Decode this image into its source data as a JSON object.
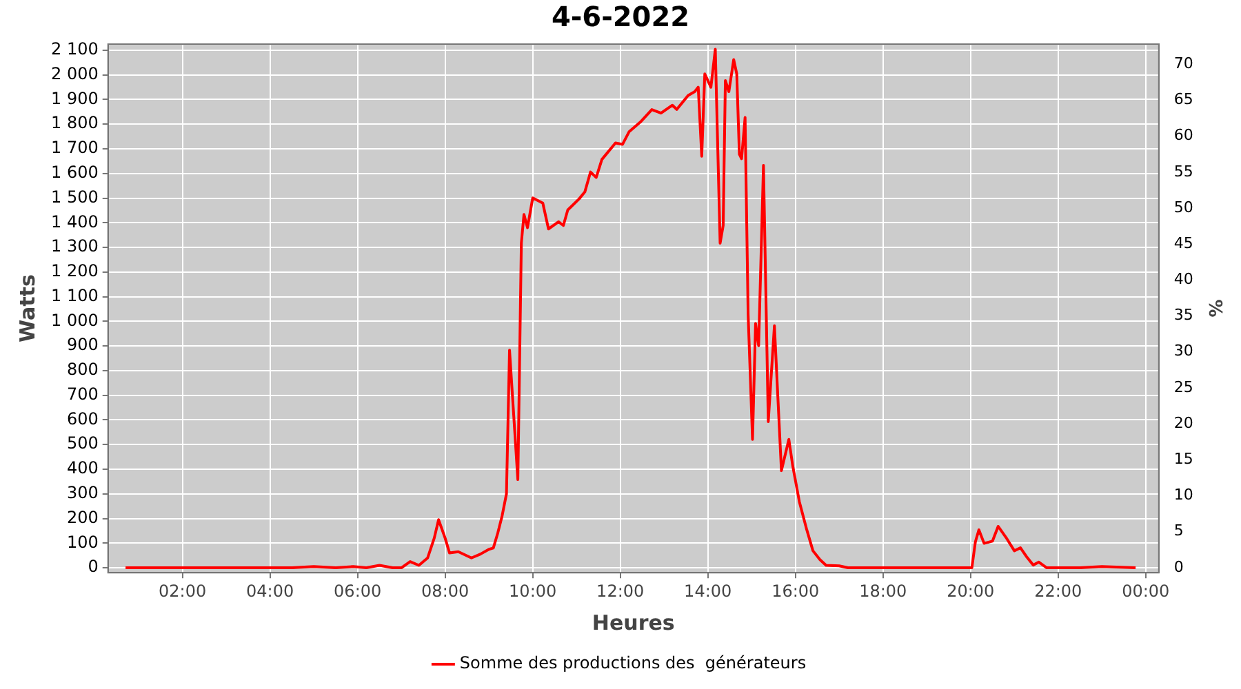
{
  "chart_data": {
    "type": "line",
    "title": "4-6-2022",
    "xlabel": "Heures",
    "ylabel": "Watts",
    "y2label": "%",
    "x": [
      0.7,
      1.5,
      2.5,
      3.5,
      4.5,
      5.0,
      5.5,
      5.9,
      6.2,
      6.5,
      6.8,
      7.0,
      7.2,
      7.4,
      7.6,
      7.75,
      7.85,
      8.0,
      8.1,
      8.3,
      8.6,
      8.8,
      9.0,
      9.1,
      9.2,
      9.3,
      9.4,
      9.47,
      9.66,
      9.74,
      9.8,
      9.88,
      10.0,
      10.23,
      10.36,
      10.59,
      10.7,
      10.8,
      11.06,
      11.19,
      11.32,
      11.45,
      11.58,
      11.89,
      12.05,
      12.2,
      12.46,
      12.72,
      12.93,
      13.19,
      13.29,
      13.55,
      13.7,
      13.78,
      13.86,
      13.93,
      14.07,
      14.17,
      14.28,
      14.35,
      14.4,
      14.48,
      14.59,
      14.66,
      14.72,
      14.77,
      14.85,
      14.92,
      15.02,
      15.09,
      15.16,
      15.27,
      15.38,
      15.52,
      15.68,
      15.85,
      15.94,
      16.09,
      16.25,
      16.4,
      16.56,
      16.7,
      17.0,
      17.2,
      18.0,
      19.0,
      19.9,
      20.03,
      20.11,
      20.19,
      20.31,
      20.5,
      20.63,
      20.81,
      21.0,
      21.14,
      21.27,
      21.43,
      21.56,
      21.74,
      22.5,
      23.0,
      23.77
    ],
    "series": [
      {
        "name": "Somme des productions des  générateurs",
        "color": "#ff0000",
        "values": [
          0,
          0,
          0,
          0,
          0,
          5,
          0,
          5,
          0,
          10,
          0,
          0,
          25,
          10,
          40,
          120,
          195,
          120,
          60,
          65,
          40,
          55,
          75,
          80,
          140,
          210,
          300,
          883,
          358,
          1318,
          1434,
          1380,
          1501,
          1480,
          1375,
          1404,
          1389,
          1452,
          1497,
          1525,
          1606,
          1584,
          1657,
          1724,
          1718,
          1769,
          1809,
          1859,
          1845,
          1877,
          1860,
          1917,
          1932,
          1950,
          1670,
          2004,
          1950,
          2104,
          1317,
          1389,
          1977,
          1932,
          2062,
          2004,
          1678,
          1660,
          1827,
          1027,
          521,
          991,
          901,
          1633,
          593,
          982,
          394,
          521,
          412,
          268,
          160,
          69,
          33,
          10,
          8,
          0,
          0,
          0,
          0,
          0,
          105,
          154,
          99,
          108,
          168,
          123,
          69,
          81,
          47,
          11,
          23,
          0,
          0,
          5,
          0
        ]
      }
    ],
    "xlim": [
      0.3,
      24.3
    ],
    "xticks": [
      {
        "value": 2,
        "label": "02:00"
      },
      {
        "value": 4,
        "label": "04:00"
      },
      {
        "value": 6,
        "label": "06:00"
      },
      {
        "value": 8,
        "label": "08:00"
      },
      {
        "value": 10,
        "label": "10:00"
      },
      {
        "value": 12,
        "label": "12:00"
      },
      {
        "value": 14,
        "label": "14:00"
      },
      {
        "value": 16,
        "label": "16:00"
      },
      {
        "value": 18,
        "label": "18:00"
      },
      {
        "value": 20,
        "label": "20:00"
      },
      {
        "value": 22,
        "label": "22:00"
      },
      {
        "value": 24,
        "label": "00:00"
      }
    ],
    "ylim": [
      -20,
      2125
    ],
    "yticks": [
      0,
      100,
      200,
      300,
      400,
      500,
      600,
      700,
      800,
      900,
      {
        "value": 1000,
        "label": "1 000"
      },
      {
        "value": 1100,
        "label": "1 100"
      },
      {
        "value": 1200,
        "label": "1 200"
      },
      {
        "value": 1300,
        "label": "1 300"
      },
      {
        "value": 1400,
        "label": "1 400"
      },
      {
        "value": 1500,
        "label": "1 500"
      },
      {
        "value": 1600,
        "label": "1 600"
      },
      {
        "value": 1700,
        "label": "1 700"
      },
      {
        "value": 1800,
        "label": "1 800"
      },
      {
        "value": 1900,
        "label": "1 900"
      },
      {
        "value": 2000,
        "label": "2 000"
      },
      {
        "value": 2100,
        "label": "2 100"
      }
    ],
    "y2lim": [
      -0.7,
      72.8
    ],
    "y2ticks": [
      0,
      5,
      10,
      15,
      20,
      25,
      30,
      35,
      40,
      45,
      50,
      55,
      60,
      65,
      70
    ],
    "grid": true,
    "legend": "bottom",
    "marker": "none",
    "line_style": "solid"
  }
}
